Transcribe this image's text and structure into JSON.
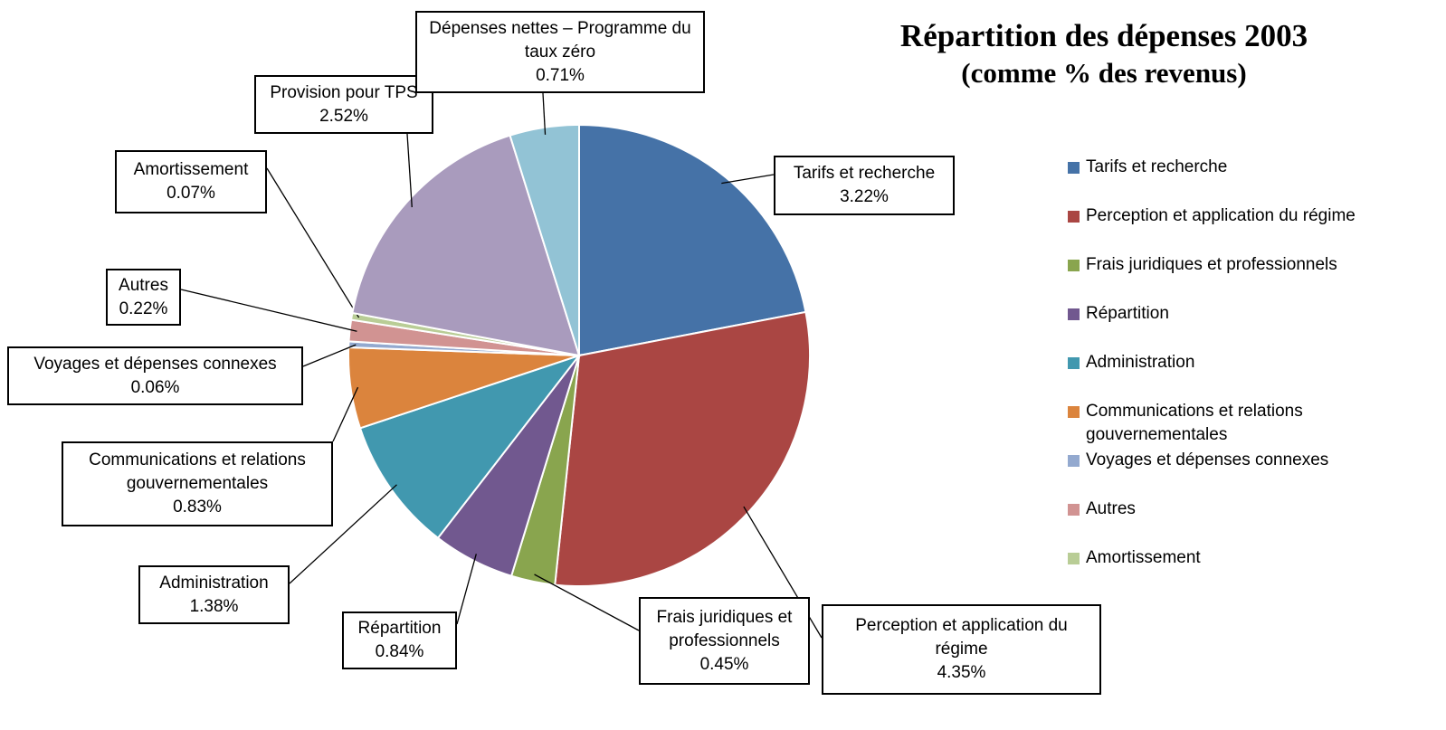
{
  "chart_data": {
    "type": "pie",
    "title": "Répartition des dépenses 2003",
    "subtitle": "(comme % des revenus)",
    "categories": [
      "Tarifs et recherche",
      "Perception et application du régime",
      "Frais juridiques et professionnels",
      "Répartition",
      "Administration",
      "Communications et relations gouvernementales",
      "Voyages et dépenses connexes",
      "Autres",
      "Amortissement",
      "Provision pour TPS",
      "Dépenses nettes – Programme du taux zéro"
    ],
    "values": [
      3.22,
      4.35,
      0.45,
      0.84,
      1.38,
      0.83,
      0.06,
      0.22,
      0.07,
      2.52,
      0.71
    ],
    "value_labels": [
      "3.22%",
      "4.35%",
      "0.45%",
      "0.84%",
      "1.38%",
      "0.83%",
      "0.06%",
      "0.22%",
      "0.07%",
      "2.52%",
      "0.71%"
    ],
    "colors": [
      "#4572a7",
      "#aa4643",
      "#89a54e",
      "#71588f",
      "#4198af",
      "#db843d",
      "#93a9cf",
      "#d19392",
      "#b9cd96",
      "#a99bbd",
      "#92c3d5"
    ],
    "legend": {
      "position": "right",
      "max_entries": 9
    }
  }
}
